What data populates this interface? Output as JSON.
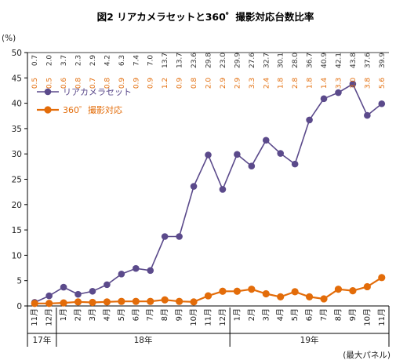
{
  "chart_data": {
    "type": "line",
    "title": "図2 リアカメラセットと360゜撮影対応台数比率",
    "ylabel": "(%)",
    "ylim": [
      0,
      50
    ],
    "yticks": [
      0,
      5,
      10,
      15,
      20,
      25,
      30,
      35,
      40,
      45,
      50
    ],
    "grid": false,
    "legend_position": "upper-left",
    "categories": [
      "11月",
      "12月",
      "1月",
      "2月",
      "3月",
      "4月",
      "5月",
      "6月",
      "7月",
      "8月",
      "9月",
      "10月",
      "11月",
      "12月",
      "1月",
      "2月",
      "3月",
      "4月",
      "5月",
      "6月",
      "7月",
      "8月",
      "9月",
      "10月",
      "11月"
    ],
    "year_groups": [
      {
        "label": "17年",
        "count": 2
      },
      {
        "label": "18年",
        "count": 12
      },
      {
        "label": "19年",
        "count": 11
      }
    ],
    "series": [
      {
        "name": "リアカメラセット",
        "color": "#5B4A8B",
        "values": [
          0.7,
          2.0,
          3.7,
          2.3,
          2.9,
          4.2,
          6.3,
          7.4,
          7.0,
          13.7,
          13.7,
          23.6,
          29.8,
          23.0,
          29.9,
          27.6,
          32.7,
          30.1,
          28.0,
          36.7,
          40.9,
          42.1,
          43.8,
          37.6,
          39.9
        ],
        "labels": [
          "0.7",
          "2.0",
          "3.7",
          "2.3",
          "2.9",
          "4.2",
          "6.3",
          "7.4",
          "7.0",
          "13.7",
          "13.7",
          "23.6",
          "29.8",
          "23.0",
          "29.9",
          "27.6",
          "32.7",
          "30.1",
          "28.0",
          "36.7",
          "40.9",
          "42.1",
          "43.8",
          "37.6",
          "39.9"
        ]
      },
      {
        "name": "360゜撮影対応",
        "color": "#E36C09",
        "values": [
          0.5,
          0.5,
          0.6,
          0.8,
          0.7,
          0.8,
          0.9,
          0.9,
          0.9,
          1.2,
          0.9,
          0.8,
          2.0,
          2.9,
          2.9,
          3.3,
          2.4,
          1.8,
          2.8,
          1.8,
          1.4,
          3.3,
          3.0,
          3.8,
          5.6
        ],
        "labels": [
          "0.5",
          "0.5",
          "0.6",
          "0.8",
          "0.7",
          "0.8",
          "0.9",
          "0.9",
          "0.9",
          "1.2",
          "0.9",
          "0.8",
          "2.0",
          "2.9",
          "2.9",
          "3.3",
          "2.4",
          "1.8",
          "2.8",
          "1.8",
          "1.4",
          "3.3",
          "3.0",
          "3.8",
          "5.6"
        ]
      }
    ],
    "annotations": [
      {
        "text": "(最大パネル)",
        "position": "bottom-right"
      }
    ]
  }
}
